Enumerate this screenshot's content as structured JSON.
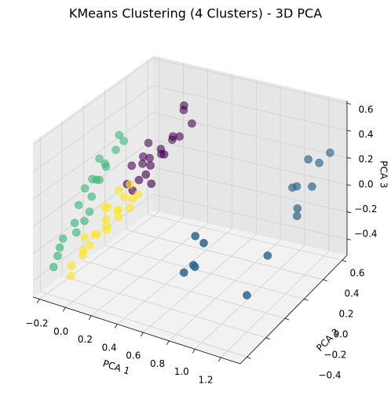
{
  "chart_data": {
    "type": "scatter3d",
    "title": "KMeans Clustering (4 Clusters) - 3D PCA",
    "xlabel": "PCA 1",
    "ylabel": "PCA 2",
    "zlabel": "PCA 3",
    "xlim": [
      -0.25,
      1.35
    ],
    "ylim": [
      -0.47,
      0.65
    ],
    "zlim": [
      -0.52,
      0.62
    ],
    "xticks": [
      {
        "value": -0.2,
        "label": "−0.2"
      },
      {
        "value": 0.0,
        "label": "0.0"
      },
      0.2,
      0.4,
      0.6,
      0.8,
      {
        "value": 1.0,
        "label": "1.0"
      },
      1.2
    ],
    "yticks": [
      {
        "value": -0.4,
        "label": "−0.4"
      },
      {
        "value": -0.2,
        "label": "−0.2"
      },
      {
        "value": 0.0,
        "label": "0.0"
      },
      0.2,
      0.4,
      0.6
    ],
    "zticks": [
      {
        "value": -0.4,
        "label": "−0.4"
      },
      {
        "value": -0.2,
        "label": "−0.2"
      },
      {
        "value": 0.0,
        "label": "0.0"
      },
      0.2,
      0.4,
      0.6
    ],
    "grid": true,
    "series": [
      {
        "color": "#440154",
        "x": [
          0.05,
          0.1,
          0.15,
          0.2,
          0.25,
          0.3,
          0.12,
          0.18,
          0.22,
          0.08,
          0.28,
          0.32,
          0.14,
          0.2,
          0.26,
          0.1,
          0.16,
          0.24,
          0.35,
          0.3
        ],
        "y": [
          0.1,
          0.15,
          0.05,
          0.2,
          0.25,
          0.3,
          0.12,
          0.08,
          0.18,
          0.02,
          0.22,
          0.28,
          0.0,
          0.1,
          0.16,
          0.2,
          0.14,
          0.06,
          0.32,
          0.26
        ],
        "z": [
          0.2,
          0.25,
          0.15,
          0.3,
          0.35,
          0.55,
          0.22,
          0.18,
          0.28,
          0.12,
          0.4,
          0.6,
          0.1,
          0.24,
          0.3,
          0.32,
          0.26,
          0.14,
          0.45,
          0.38
        ]
      },
      {
        "color": "#31688e",
        "x": [
          1.15,
          1.1,
          1.12,
          1.2,
          1.25,
          1.18,
          1.2,
          1.22,
          1.25,
          1.2,
          0.95,
          1.0,
          0.9,
          0.95,
          0.97
        ],
        "y": [
          0.5,
          0.4,
          0.42,
          0.55,
          0.6,
          0.35,
          0.32,
          0.45,
          -0.05,
          -0.2,
          -0.4,
          -0.38,
          -0.45,
          -0.42,
          -0.43
        ],
        "z": [
          0.25,
          0.1,
          0.1,
          0.2,
          0.25,
          0.0,
          -0.03,
          0.1,
          -0.05,
          -0.25,
          0.25,
          0.2,
          0.0,
          0.05,
          0.05
        ]
      },
      {
        "color": "#35b779",
        "x": [
          -0.2,
          -0.15,
          -0.1,
          -0.18,
          -0.12,
          -0.05,
          -0.2,
          -0.16,
          -0.08,
          -0.14,
          -0.1,
          -0.19,
          -0.06,
          -0.12,
          -0.17,
          -0.03,
          -0.09,
          -0.2,
          -0.13,
          -0.07
        ],
        "y": [
          -0.3,
          -0.2,
          -0.1,
          0.0,
          0.05,
          0.1,
          -0.25,
          -0.15,
          -0.05,
          0.02,
          -0.12,
          -0.35,
          0.08,
          -0.22,
          -0.08,
          0.12,
          -0.18,
          -0.28,
          -0.02,
          0.0
        ],
        "z": [
          -0.3,
          -0.1,
          0.05,
          0.1,
          0.2,
          0.4,
          -0.2,
          0.0,
          0.15,
          0.25,
          -0.05,
          -0.35,
          0.3,
          -0.15,
          0.08,
          0.35,
          -0.08,
          -0.25,
          0.12,
          0.22
        ]
      },
      {
        "color": "#fde725",
        "x": [
          -0.05,
          0.0,
          0.05,
          0.1,
          0.15,
          0.2,
          -0.02,
          0.04,
          0.08,
          0.12,
          0.18,
          -0.08,
          0.02,
          0.06,
          0.14,
          0.1,
          0.0,
          0.16,
          -0.04,
          0.08,
          0.12,
          0.2
        ],
        "y": [
          -0.35,
          -0.3,
          -0.25,
          -0.2,
          -0.15,
          -0.1,
          -0.28,
          -0.22,
          -0.18,
          -0.12,
          -0.05,
          -0.32,
          -0.26,
          -0.14,
          -0.08,
          -0.2,
          -0.1,
          -0.16,
          -0.24,
          -0.06,
          0.0,
          -0.02
        ],
        "z": [
          -0.3,
          -0.2,
          -0.1,
          -0.05,
          0.0,
          0.05,
          -0.25,
          -0.12,
          -0.02,
          0.02,
          0.08,
          -0.4,
          -0.18,
          0.04,
          0.1,
          -0.08,
          0.0,
          0.06,
          -0.15,
          0.12,
          0.14,
          0.1
        ]
      }
    ]
  }
}
